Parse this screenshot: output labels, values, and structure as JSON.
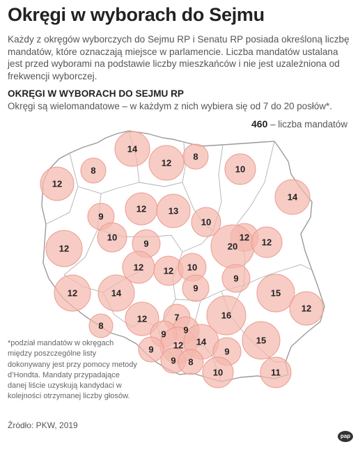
{
  "title": "Okręgi w wyborach do Sejmu",
  "intro": "Każdy z okręgów wyborczych do Sejmu RP i Senatu RP posiada określoną liczbę mandatów, które oznaczają miejsce w parlamencie. Liczba mandatów ustalana jest przed wyborami na podstawie liczby mieszkańców i nie jest uzależniona od frekwencji wyborczej.",
  "subhead": "OKRĘGI W WYBORACH DO SEJMU RP",
  "description": "Okręgi są wielomandatowe – w każdym z nich wybiera się od 7 do 20 posłów*.",
  "legend": {
    "total": "460",
    "label": "– liczba mandatów"
  },
  "colors": {
    "circle_fill": "#f4b8ae",
    "circle_stroke": "#ec9a8e",
    "map_fill": "#ffffff",
    "border": "#a7a7a7"
  },
  "districts": [
    {
      "seats": "14"
    },
    {
      "seats": "12"
    },
    {
      "seats": "8"
    },
    {
      "seats": "10"
    },
    {
      "seats": "8"
    },
    {
      "seats": "12"
    },
    {
      "seats": "14"
    },
    {
      "seats": "9"
    },
    {
      "seats": "12"
    },
    {
      "seats": "13"
    },
    {
      "seats": "10"
    },
    {
      "seats": "10"
    },
    {
      "seats": "12"
    },
    {
      "seats": "12"
    },
    {
      "seats": "20"
    },
    {
      "seats": "12"
    },
    {
      "seats": "9"
    },
    {
      "seats": "12"
    },
    {
      "seats": "12"
    },
    {
      "seats": "10"
    },
    {
      "seats": "9"
    },
    {
      "seats": "9"
    },
    {
      "seats": "12"
    },
    {
      "seats": "14"
    },
    {
      "seats": "15"
    },
    {
      "seats": "12"
    },
    {
      "seats": "12"
    },
    {
      "seats": "7"
    },
    {
      "seats": "16"
    },
    {
      "seats": "8"
    },
    {
      "seats": "9"
    },
    {
      "seats": "9"
    },
    {
      "seats": "12"
    },
    {
      "seats": "14"
    },
    {
      "seats": "9"
    },
    {
      "seats": "15"
    },
    {
      "seats": "9"
    },
    {
      "seats": "9"
    },
    {
      "seats": "8"
    },
    {
      "seats": "10"
    },
    {
      "seats": "11"
    }
  ],
  "footnote": "*podział mandatów w okręgach między poszczególne listy dokonywany jest przy pomocy metody d’Hondta. Mandaty przypadające danej liście uzyskują kandydaci w kolejności otrzymanej liczby głosów.",
  "source": "Źródło: PKW, 2019",
  "logo": "pap"
}
